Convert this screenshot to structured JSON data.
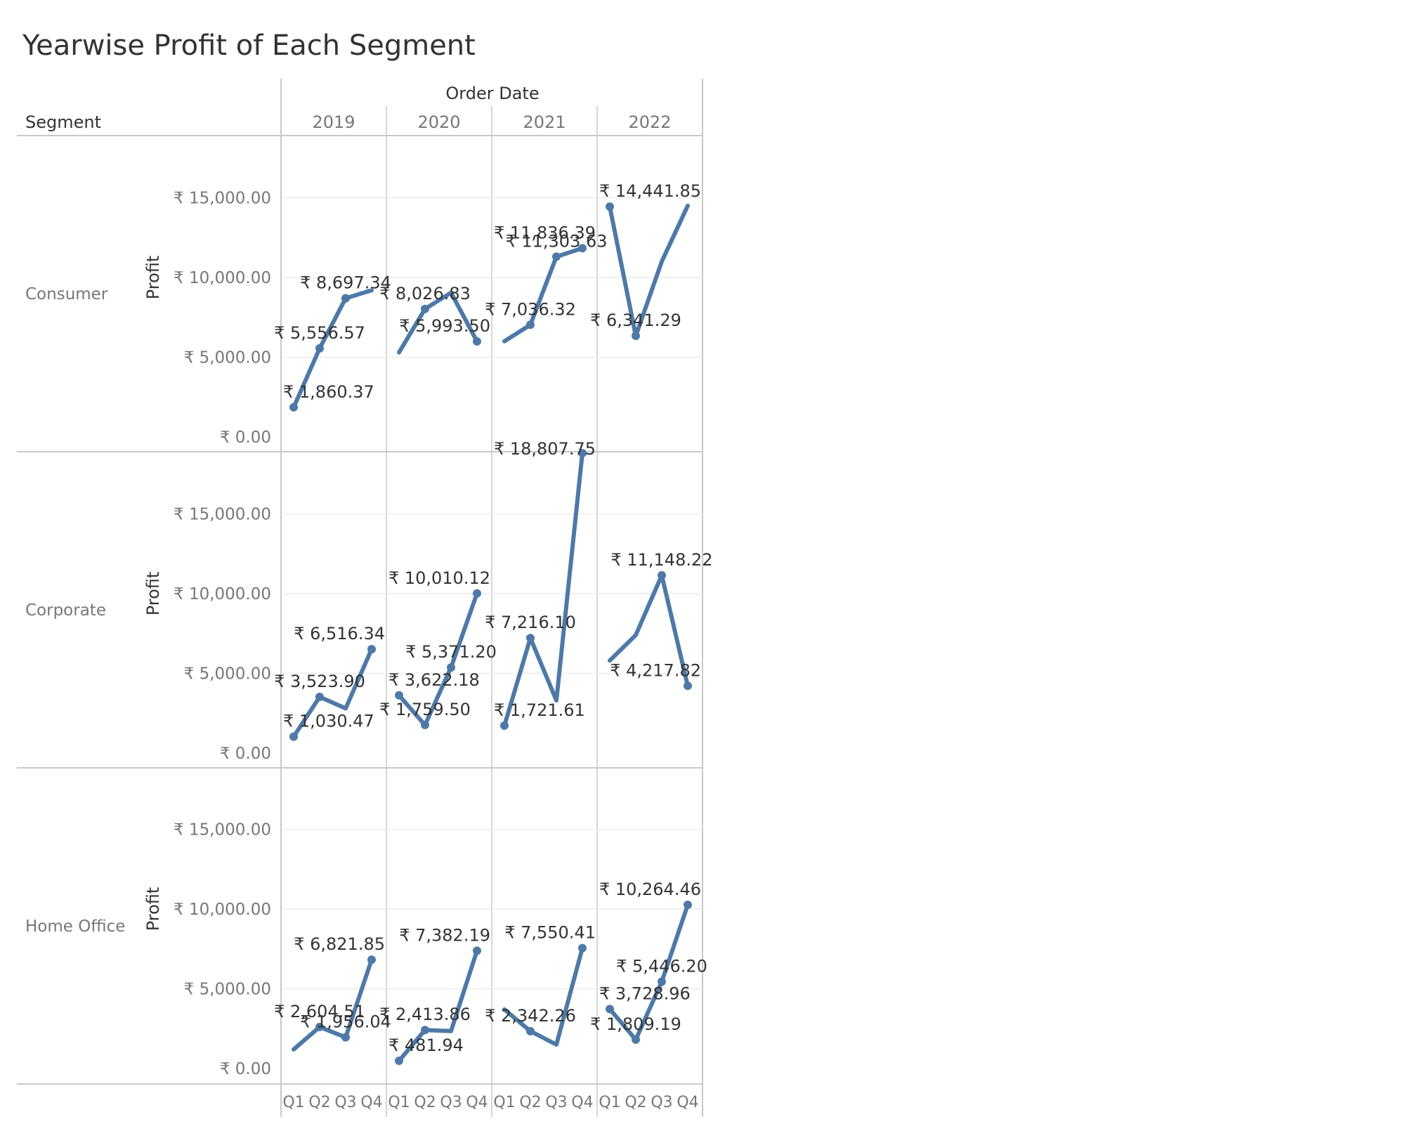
{
  "title": "Yearwise Profit of Each Segment",
  "column_header": "Order Date",
  "row_header": "Segment",
  "colors": {
    "line": "#4e79a7",
    "grid": "#ececec",
    "divider": "#c8c8c8"
  },
  "chart_data": {
    "type": "line",
    "title": "Yearwise Profit of Each Segment",
    "xlabel": "Order Date",
    "ylabel": "Profit",
    "years": [
      "2019",
      "2020",
      "2021",
      "2022"
    ],
    "quarters": [
      "Q1",
      "Q2",
      "Q3",
      "Q4"
    ],
    "ylim": [
      0,
      20000
    ],
    "yticks": [
      0,
      5000,
      10000,
      15000
    ],
    "ytick_labels": [
      "₹ 0.00",
      "₹ 5,000.00",
      "₹ 10,000.00",
      "₹ 15,000.00"
    ],
    "grid": true,
    "segments": [
      {
        "name": "Consumer",
        "values": [
          [
            1860.37,
            5556.57,
            8697.34,
            9200
          ],
          [
            5300,
            8026.83,
            9050,
            5993.5
          ],
          [
            6000,
            7036.32,
            11303.63,
            11836.39
          ],
          [
            14441.85,
            6341.29,
            11000,
            14500
          ]
        ],
        "labels": [
          {
            "year": 0,
            "q": 0,
            "text": "₹ 1,860.37"
          },
          {
            "year": 0,
            "q": 1,
            "text": "₹ 5,556.57"
          },
          {
            "year": 0,
            "q": 2,
            "text": "₹ 8,697.34"
          },
          {
            "year": 1,
            "q": 1,
            "text": "₹ 8,026.83"
          },
          {
            "year": 1,
            "q": 3,
            "text": "₹ 5,993.50"
          },
          {
            "year": 2,
            "q": 1,
            "text": "₹ 7,036.32"
          },
          {
            "year": 2,
            "q": 2,
            "text": "₹ 11,303.63"
          },
          {
            "year": 2,
            "q": 3,
            "text": "₹ 11,836.39"
          },
          {
            "year": 3,
            "q": 0,
            "text": "₹ 14,441.85"
          },
          {
            "year": 3,
            "q": 1,
            "text": "₹ 6,341.29"
          }
        ]
      },
      {
        "name": "Corporate",
        "values": [
          [
            1030.47,
            3523.9,
            2800,
            6516.34
          ],
          [
            3622.18,
            1759.5,
            5371.2,
            10010.12
          ],
          [
            1721.61,
            7216.1,
            3300,
            18807.75
          ],
          [
            5800,
            7400,
            11148.22,
            4217.82
          ]
        ],
        "labels": [
          {
            "year": 0,
            "q": 0,
            "text": "₹ 1,030.47"
          },
          {
            "year": 0,
            "q": 1,
            "text": "₹ 3,523.90"
          },
          {
            "year": 0,
            "q": 3,
            "text": "₹ 6,516.34"
          },
          {
            "year": 1,
            "q": 0,
            "text": "₹ 3,622.18"
          },
          {
            "year": 1,
            "q": 1,
            "text": "₹ 1,759.50"
          },
          {
            "year": 1,
            "q": 2,
            "text": "₹ 5,371.20"
          },
          {
            "year": 1,
            "q": 3,
            "text": "₹ 10,010.12"
          },
          {
            "year": 2,
            "q": 0,
            "text": "₹ 1,721.61"
          },
          {
            "year": 2,
            "q": 1,
            "text": "₹ 7,216.10"
          },
          {
            "year": 2,
            "q": 3,
            "text": "₹ 18,807.75"
          },
          {
            "year": 3,
            "q": 2,
            "text": "₹ 11,148.22"
          },
          {
            "year": 3,
            "q": 3,
            "text": "₹ 4,217.82"
          }
        ]
      },
      {
        "name": "Home Office",
        "values": [
          [
            1200,
            2604.51,
            1956.04,
            6821.85
          ],
          [
            481.94,
            2413.86,
            2350,
            7382.19
          ],
          [
            3700,
            2342.26,
            1500,
            7550.41
          ],
          [
            3728.96,
            1809.19,
            5446.2,
            10264.46
          ]
        ],
        "labels": [
          {
            "year": 0,
            "q": 1,
            "text": "₹ 2,604.51"
          },
          {
            "year": 0,
            "q": 2,
            "text": "₹ 1,956.04"
          },
          {
            "year": 0,
            "q": 3,
            "text": "₹ 6,821.85"
          },
          {
            "year": 1,
            "q": 0,
            "text": "₹ 481.94"
          },
          {
            "year": 1,
            "q": 1,
            "text": "₹ 2,413.86"
          },
          {
            "year": 1,
            "q": 3,
            "text": "₹ 7,382.19"
          },
          {
            "year": 2,
            "q": 1,
            "text": "₹ 2,342.26"
          },
          {
            "year": 2,
            "q": 3,
            "text": "₹ 7,550.41"
          },
          {
            "year": 3,
            "q": 0,
            "text": "₹ 3,728.96"
          },
          {
            "year": 3,
            "q": 1,
            "text": "₹ 1,809.19"
          },
          {
            "year": 3,
            "q": 2,
            "text": "₹ 5,446.20"
          },
          {
            "year": 3,
            "q": 3,
            "text": "₹ 10,264.46"
          }
        ]
      }
    ]
  }
}
